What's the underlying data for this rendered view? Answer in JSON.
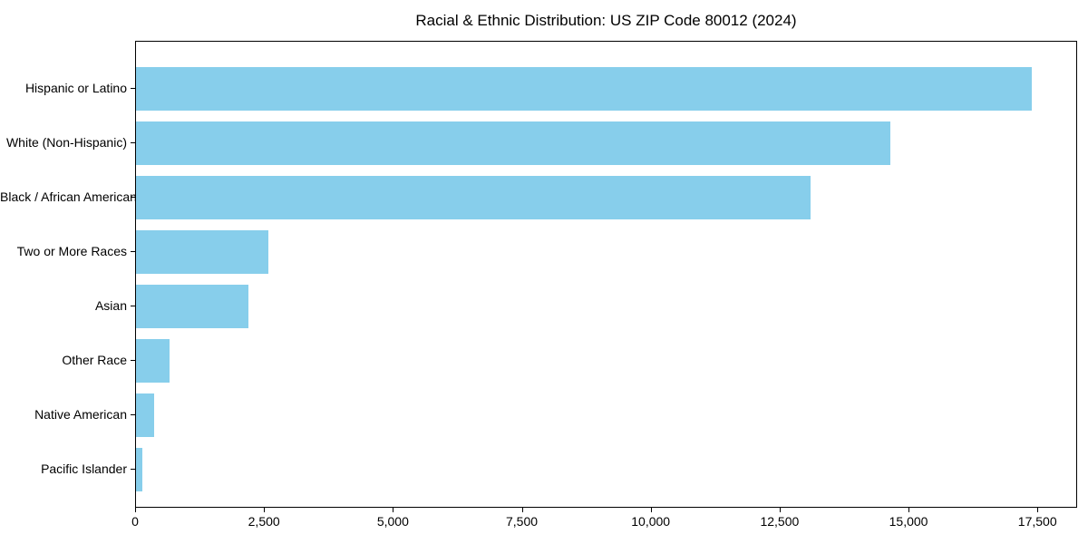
{
  "chart_data": {
    "type": "bar",
    "orientation": "horizontal",
    "title": "Racial & Ethnic Distribution: US ZIP Code 80012 (2024)",
    "categories": [
      "Hispanic or Latino",
      "White (Non-Hispanic)",
      "Black / African American",
      "Two or More Races",
      "Asian",
      "Other Race",
      "Native American",
      "Pacific Islander"
    ],
    "values": [
      17400,
      14660,
      13100,
      2580,
      2180,
      650,
      350,
      120
    ],
    "xlabel": "",
    "ylabel": "",
    "xlim": [
      0,
      18270
    ],
    "x_ticks": [
      0,
      2500,
      5000,
      7500,
      10000,
      12500,
      15000,
      17500
    ],
    "x_tick_labels": [
      "0",
      "2,500",
      "5,000",
      "7,500",
      "10,000",
      "12,500",
      "15,000",
      "17,500"
    ],
    "bar_color": "#87CEEB",
    "grid": false,
    "legend": null,
    "background_color": "#ffffff",
    "spine_color": "#000000"
  }
}
